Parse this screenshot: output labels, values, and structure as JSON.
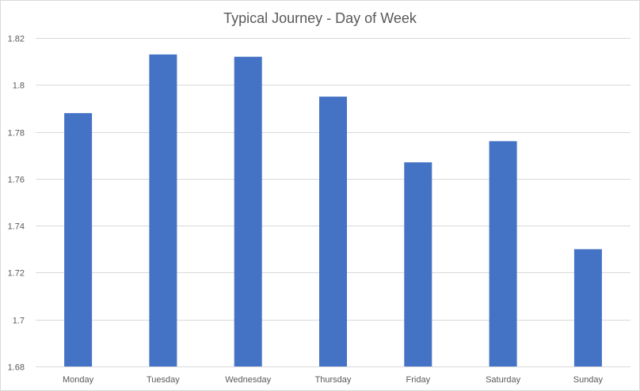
{
  "chart_data": {
    "type": "bar",
    "title": "Typical Journey - Day of Week",
    "xlabel": "",
    "ylabel": "",
    "categories": [
      "Monday",
      "Tuesday",
      "Wednesday",
      "Thursday",
      "Friday",
      "Saturday",
      "Sunday"
    ],
    "values": [
      1.788,
      1.813,
      1.812,
      1.795,
      1.767,
      1.776,
      1.73
    ],
    "ylim": [
      1.68,
      1.82
    ],
    "yticks": [
      "1.68",
      "1.7",
      "1.72",
      "1.74",
      "1.76",
      "1.78",
      "1.8",
      "1.82"
    ],
    "grid": true,
    "legend": "none",
    "bar_color": "#4472C4"
  }
}
